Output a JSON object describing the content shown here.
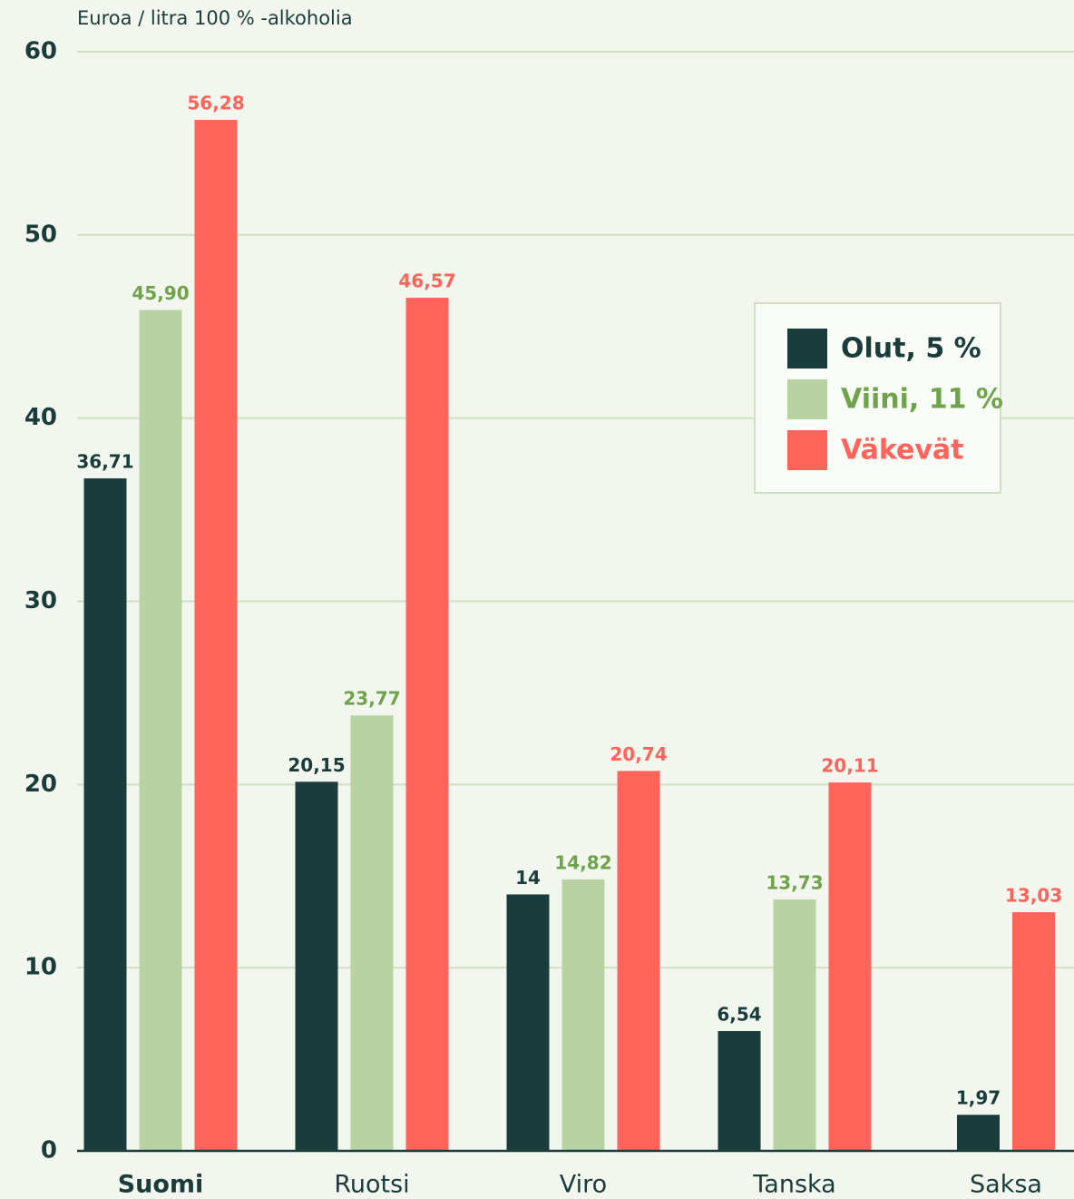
{
  "chart_data": {
    "type": "bar",
    "axis_label": "Euroa / litra 100 % -alkoholia",
    "categories": [
      "Suomi",
      "Ruotsi",
      "Viro",
      "Tanska",
      "Saksa"
    ],
    "series": [
      {
        "name": "Olut, 5 %",
        "color": "#1a3c3a",
        "label_color": "#1a3c3a",
        "values": [
          36.71,
          20.15,
          14,
          6.54,
          1.97
        ],
        "value_labels": [
          "36,71",
          "20,15",
          "14",
          "6,54",
          "1,97"
        ]
      },
      {
        "name": "Viini, 11 %",
        "color": "#b9d2a3",
        "label_color": "#6fa34a",
        "values": [
          45.9,
          23.77,
          14.82,
          13.73,
          null
        ],
        "value_labels": [
          "45,90",
          "23,77",
          "14,82",
          "13,73",
          null
        ]
      },
      {
        "name": "Väkevät",
        "color": "#ff635a",
        "label_color": "#ff635a",
        "values": [
          56.28,
          46.57,
          20.74,
          20.11,
          13.03
        ],
        "value_labels": [
          "56,28",
          "46,57",
          "20,74",
          "20,11",
          "13,03"
        ]
      }
    ],
    "ylim": [
      0,
      60
    ],
    "yticks": [
      0,
      10,
      20,
      30,
      40,
      50,
      60
    ],
    "grid": true,
    "legend": "upper right"
  }
}
